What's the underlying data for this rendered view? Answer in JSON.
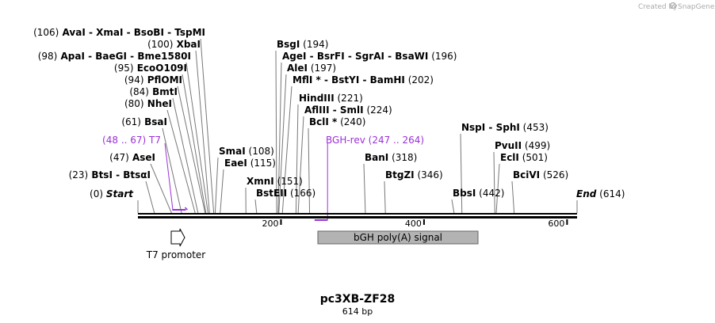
{
  "credit": {
    "text": "Created by",
    "brand": "SnapGene"
  },
  "map": {
    "name": "pc3XB-ZF28",
    "length_label": "614 bp",
    "total_bp": 614,
    "ticks": [
      {
        "pos": 200,
        "label": "200"
      },
      {
        "pos": 400,
        "label": "400"
      },
      {
        "pos": 600,
        "label": "600"
      }
    ],
    "ends": [
      {
        "id": "start",
        "name": "Start",
        "pos_label": "(0)",
        "pos": 0
      },
      {
        "id": "end",
        "name": "End",
        "pos_label": "(614)",
        "pos": 614
      }
    ],
    "sites": [
      {
        "id": "btsi",
        "pos": 23,
        "pos_label": "(23)",
        "names": [
          "BtsI",
          "BtsαI"
        ]
      },
      {
        "id": "asei",
        "pos": 47,
        "pos_label": "(47)",
        "names": [
          "AseI"
        ]
      },
      {
        "id": "bsai",
        "pos": 61,
        "pos_label": "(61)",
        "names": [
          "BsaI"
        ]
      },
      {
        "id": "nhei",
        "pos": 80,
        "pos_label": "(80)",
        "names": [
          "NheI"
        ]
      },
      {
        "id": "bmti",
        "pos": 84,
        "pos_label": "(84)",
        "names": [
          "BmtI"
        ]
      },
      {
        "id": "pfloMI",
        "pos": 94,
        "pos_label": "(94)",
        "names": [
          "PflOMI"
        ]
      },
      {
        "id": "ecoo109i",
        "pos": 95,
        "pos_label": "(95)",
        "names": [
          "EcoO109I"
        ]
      },
      {
        "id": "apai",
        "pos": 98,
        "pos_label": "(98)",
        "names": [
          "ApaI",
          "BaeGI",
          "Bme1580I"
        ]
      },
      {
        "id": "xbai",
        "pos": 100,
        "pos_label": "(100)",
        "names": [
          "XbaI"
        ]
      },
      {
        "id": "avai",
        "pos": 106,
        "pos_label": "(106)",
        "names": [
          "AvaI",
          "XmaI",
          "BsoBI",
          "TspMI"
        ]
      },
      {
        "id": "smai",
        "pos": 108,
        "pos_label": "(108)",
        "names": [
          "SmaI"
        ]
      },
      {
        "id": "eaei",
        "pos": 115,
        "pos_label": "(115)",
        "names": [
          "EaeI"
        ]
      },
      {
        "id": "xmni",
        "pos": 151,
        "pos_label": "(151)",
        "names": [
          "XmnI"
        ]
      },
      {
        "id": "bsteii",
        "pos": 166,
        "pos_label": "(166)",
        "names": [
          "BstEII"
        ]
      },
      {
        "id": "bsgi",
        "pos": 194,
        "pos_label": "(194)",
        "names": [
          "BsgI"
        ]
      },
      {
        "id": "agei",
        "pos": 196,
        "pos_label": "(196)",
        "names": [
          "AgeI",
          "BsrFI",
          "SgrAI",
          "BsaWI"
        ]
      },
      {
        "id": "alei",
        "pos": 197,
        "pos_label": "(197)",
        "names": [
          "AleI"
        ]
      },
      {
        "id": "mfli",
        "pos": 202,
        "pos_label": "(202)",
        "names": [
          "MflI *",
          "BstYI",
          "BamHI"
        ]
      },
      {
        "id": "hindiii",
        "pos": 221,
        "pos_label": "(221)",
        "names": [
          "HindIII"
        ]
      },
      {
        "id": "afliii",
        "pos": 224,
        "pos_label": "(224)",
        "names": [
          "AflIII",
          "SmlI"
        ]
      },
      {
        "id": "bcli",
        "pos": 240,
        "pos_label": "(240)",
        "names": [
          "BclI *"
        ]
      },
      {
        "id": "bani",
        "pos": 318,
        "pos_label": "(318)",
        "names": [
          "BanI"
        ]
      },
      {
        "id": "btgzi",
        "pos": 346,
        "pos_label": "(346)",
        "names": [
          "BtgZI"
        ]
      },
      {
        "id": "bbsi",
        "pos": 442,
        "pos_label": "(442)",
        "names": [
          "BbsI"
        ]
      },
      {
        "id": "nspi",
        "pos": 453,
        "pos_label": "(453)",
        "names": [
          "NspI",
          "SphI"
        ]
      },
      {
        "id": "pvuii",
        "pos": 499,
        "pos_label": "(499)",
        "names": [
          "PvuII"
        ]
      },
      {
        "id": "ecli",
        "pos": 501,
        "pos_label": "(501)",
        "names": [
          "EclI"
        ]
      },
      {
        "id": "bcivi",
        "pos": 526,
        "pos_label": "(526)",
        "names": [
          "BciVI"
        ]
      }
    ],
    "primers": [
      {
        "id": "t7",
        "name": "T7",
        "range_label": "(48 .. 67)",
        "start": 48,
        "end": 67,
        "color": "#9b30d9"
      },
      {
        "id": "bgh-rev",
        "name": "BGH-rev",
        "range_label": "(247 .. 264)",
        "start": 247,
        "end": 264,
        "color": "#9b30d9"
      }
    ],
    "features": [
      {
        "id": "t7-promoter",
        "label": "T7 promoter",
        "type": "promoter",
        "start": 48,
        "end": 66
      },
      {
        "id": "bgh-polya",
        "label": "bGH poly(A) signal",
        "type": "polyA",
        "start": 250,
        "end": 474,
        "color": "#b3b3b3"
      }
    ]
  }
}
